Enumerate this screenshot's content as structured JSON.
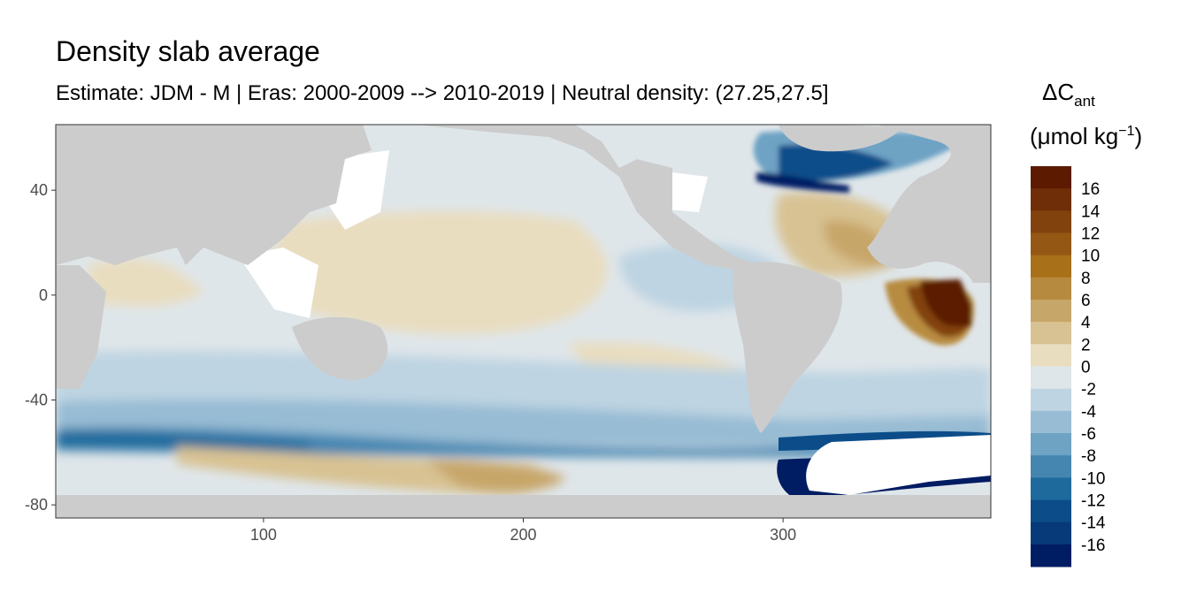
{
  "title": "Density slab average",
  "subtitle": "Estimate: JDM - M | Eras: 2000-2009 --> 2010-2019 | Neutral density: (27.25,27.5]",
  "chart_data": {
    "type": "heatmap",
    "x_ticks": [
      100,
      200,
      300
    ],
    "y_ticks": [
      40,
      0,
      -40,
      -80
    ],
    "xlim": [
      20,
      380
    ],
    "ylim": [
      -85,
      65
    ],
    "legend": {
      "title_main": "ΔC",
      "title_sub": "ant",
      "unit_pre": "(μmol kg",
      "unit_sup": "−1",
      "unit_post": ")",
      "labels": [
        "16",
        "14",
        "12",
        "10",
        "8",
        "6",
        "4",
        "2",
        "0",
        "-2",
        "-4",
        "-6",
        "-8",
        "-10",
        "-12",
        "-14",
        "-16"
      ],
      "colors": [
        "#5c1a01",
        "#6f2e07",
        "#82420e",
        "#955814",
        "#a87019",
        "#b78b3f",
        "#c7a669",
        "#d8c293",
        "#e9ddc0",
        "#dfe6ea",
        "#bed4e2",
        "#97bcd4",
        "#6ea3c4",
        "#4586b1",
        "#1f6a9c",
        "#0c4d89",
        "#073a78",
        "#001c63"
      ]
    },
    "colors": {
      "land": "#cccccc",
      "panel_border": "#333333",
      "no_data": "#ffffff"
    }
  }
}
